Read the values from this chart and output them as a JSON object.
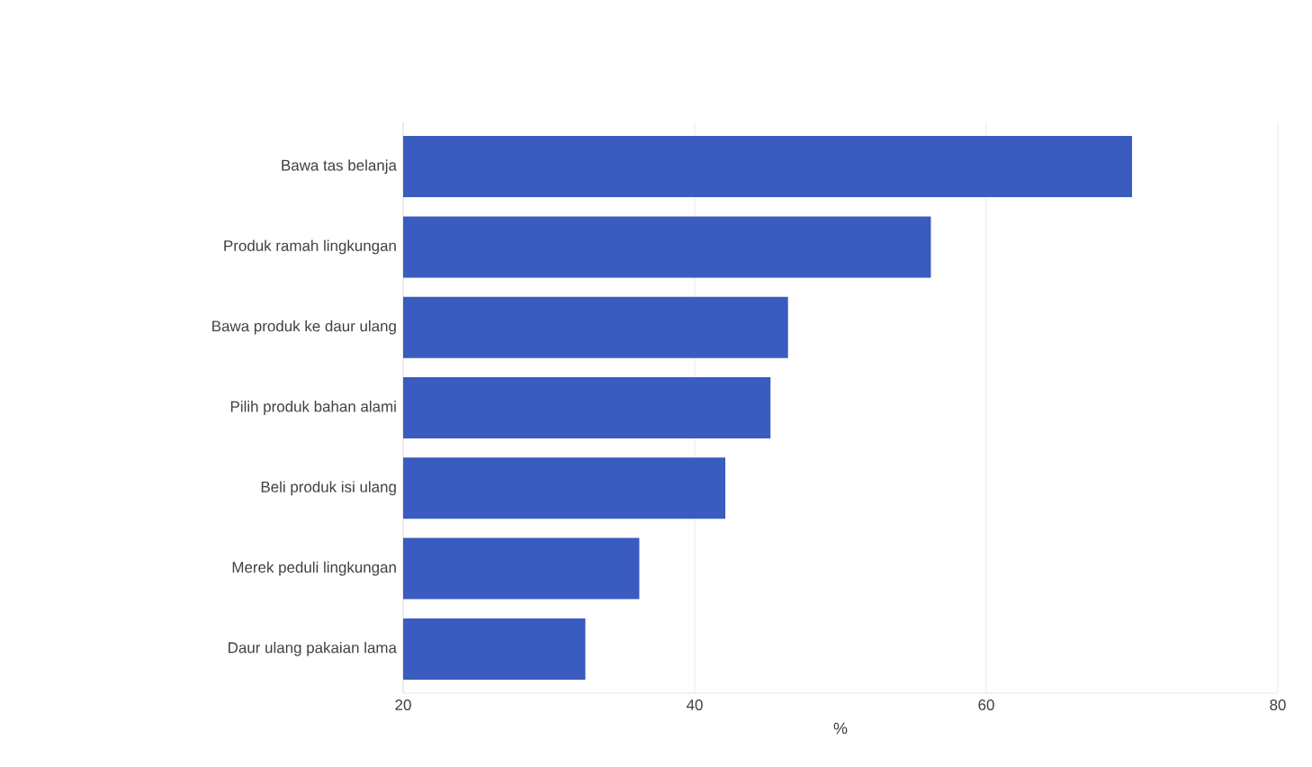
{
  "chart_data": {
    "type": "bar",
    "orientation": "horizontal",
    "categories": [
      "Bawa tas belanja",
      "Produk ramah lingkungan",
      "Bawa produk ke daur ulang",
      "Pilih produk bahan alami",
      "Beli produk isi ulang",
      "Merek peduli lingkungan",
      "Daur ulang pakaian lama"
    ],
    "values": [
      70,
      56.2,
      46.4,
      45.2,
      42.1,
      36.2,
      32.5
    ],
    "color": "#3a5bbf",
    "xlabel": "%",
    "xlim": [
      20,
      80
    ],
    "xticks": [
      20,
      40,
      60,
      80
    ],
    "grid": "x"
  }
}
